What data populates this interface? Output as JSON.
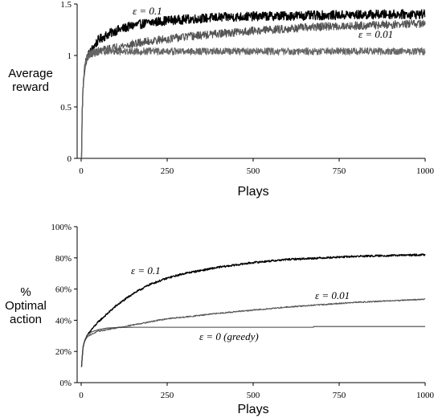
{
  "chart_data": [
    {
      "type": "line",
      "xlabel": "Plays",
      "ylabel_lines": [
        "Average",
        "reward"
      ],
      "xlim": [
        0,
        1000
      ],
      "ylim": [
        0,
        1.5
      ],
      "x_ticks": [
        0,
        250,
        500,
        750,
        1000
      ],
      "x_tick_labels": [
        "0",
        "250",
        "500",
        "750",
        "1000"
      ],
      "y_ticks": [
        0,
        0.5,
        1,
        1.5
      ],
      "y_tick_labels": [
        "0",
        "0.5",
        "1",
        "1.5"
      ],
      "grid": false,
      "series": [
        {
          "label": "ε = 0.1",
          "color": "#000000",
          "noise": 0.045,
          "x": [
            1,
            3,
            5,
            8,
            10,
            15,
            20,
            30,
            40,
            50,
            75,
            100,
            150,
            200,
            250,
            300,
            400,
            500,
            600,
            700,
            800,
            900,
            1000
          ],
          "y": [
            0.0,
            0.45,
            0.65,
            0.8,
            0.88,
            0.96,
            1.0,
            1.05,
            1.1,
            1.15,
            1.2,
            1.24,
            1.29,
            1.32,
            1.34,
            1.35,
            1.37,
            1.38,
            1.385,
            1.39,
            1.395,
            1.4,
            1.4
          ]
        },
        {
          "label": "ε = 0.01",
          "color": "#555555",
          "noise": 0.04,
          "x": [
            1,
            3,
            5,
            8,
            10,
            15,
            20,
            30,
            40,
            50,
            75,
            100,
            150,
            200,
            250,
            300,
            400,
            500,
            600,
            700,
            800,
            900,
            1000
          ],
          "y": [
            0.0,
            0.45,
            0.65,
            0.8,
            0.88,
            0.96,
            1.0,
            1.02,
            1.03,
            1.04,
            1.06,
            1.08,
            1.11,
            1.14,
            1.16,
            1.18,
            1.21,
            1.24,
            1.26,
            1.28,
            1.29,
            1.3,
            1.31
          ]
        },
        {
          "label": "",
          "color": "#666666",
          "noise": 0.035,
          "x": [
            1,
            3,
            5,
            8,
            10,
            15,
            20,
            30,
            40,
            50,
            75,
            100,
            150,
            200,
            250,
            300,
            400,
            500,
            600,
            700,
            800,
            900,
            1000
          ],
          "y": [
            0.0,
            0.45,
            0.65,
            0.8,
            0.88,
            0.96,
            1.0,
            1.02,
            1.03,
            1.04,
            1.04,
            1.04,
            1.04,
            1.04,
            1.04,
            1.04,
            1.04,
            1.04,
            1.04,
            1.04,
            1.04,
            1.04,
            1.04
          ]
        }
      ]
    },
    {
      "type": "line",
      "xlabel": "Plays",
      "ylabel_lines": [
        "%",
        "Optimal",
        "action"
      ],
      "xlim": [
        0,
        1000
      ],
      "ylim": [
        0,
        100
      ],
      "x_ticks": [
        0,
        250,
        500,
        750,
        1000
      ],
      "x_tick_labels": [
        "0",
        "250",
        "500",
        "750",
        "1000"
      ],
      "y_ticks": [
        0,
        20,
        40,
        60,
        80,
        100
      ],
      "y_tick_labels": [
        "0%",
        "20%",
        "40%",
        "60%",
        "80%",
        "100%"
      ],
      "grid": false,
      "series": [
        {
          "label": "ε = 0.1",
          "color": "#000000",
          "noise": 0.6,
          "x": [
            1,
            5,
            10,
            20,
            30,
            50,
            75,
            100,
            150,
            200,
            250,
            300,
            400,
            500,
            600,
            700,
            800,
            900,
            1000
          ],
          "y": [
            10,
            22,
            27,
            31,
            34,
            39,
            44,
            49,
            57,
            63,
            67,
            70,
            74,
            77,
            79,
            80,
            81,
            81.5,
            82
          ]
        },
        {
          "label": "ε = 0.01",
          "color": "#555555",
          "noise": 0.4,
          "x": [
            1,
            5,
            10,
            20,
            30,
            50,
            75,
            100,
            150,
            200,
            250,
            300,
            400,
            500,
            600,
            700,
            800,
            900,
            1000
          ],
          "y": [
            10,
            22,
            27,
            30,
            31,
            33,
            34,
            35,
            37,
            39,
            41,
            42,
            44.5,
            46.5,
            48.5,
            50,
            51.5,
            52.5,
            53.5
          ]
        },
        {
          "label": "ε = 0 (greedy)",
          "color": "#444444",
          "noise": 0.0,
          "x": [
            1,
            5,
            10,
            20,
            30,
            50,
            75,
            100,
            150,
            200,
            300,
            400,
            500,
            600,
            675,
            676,
            700,
            800,
            900,
            1000
          ],
          "y": [
            10,
            22,
            27,
            31,
            32.5,
            34,
            35,
            35.3,
            35.5,
            35.5,
            35.5,
            35.5,
            35.5,
            35.5,
            35.5,
            36,
            36,
            36,
            36,
            36
          ]
        }
      ]
    }
  ]
}
